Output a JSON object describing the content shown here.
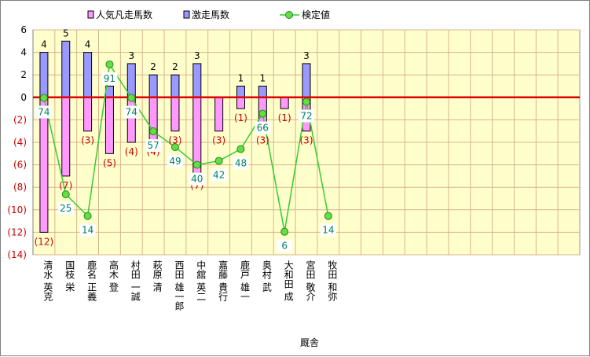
{
  "chart_data": {
    "type": "bar+line",
    "xlabel": "厩舎",
    "ylim": [
      -14,
      6
    ],
    "y_ticks": [
      6,
      4,
      2,
      0,
      -2,
      -4,
      -6,
      -8,
      -10,
      -12,
      -14
    ],
    "y_tick_labels": [
      "6",
      "4",
      "2",
      "0",
      "(2)",
      "(4)",
      "(6)",
      "(8)",
      "(10)",
      "(12)",
      "(14)"
    ],
    "grid": true,
    "legend_position": "top",
    "categories": [
      "清水 英克",
      "国枝 栄",
      "鹿名 正義",
      "高木 登",
      "村田 一誠",
      "萩原 清",
      "西田 雄一郎",
      "中舘 英二",
      "嘉藤 貴行",
      "鹿戸 雄一",
      "奥村 武",
      "大和田 成",
      "宮田 敬介",
      "牧田 和弥"
    ],
    "series": [
      {
        "name": "人気凡走馬数",
        "kind": "bar",
        "color": "#ff99ff",
        "values": [
          -12,
          -7,
          -3,
          -5,
          -4,
          -4,
          -3,
          -7,
          -3,
          -1,
          -3,
          -1,
          -3,
          null
        ]
      },
      {
        "name": "激走馬数",
        "kind": "bar",
        "color": "#9999ff",
        "values": [
          4,
          5,
          4,
          1,
          3,
          2,
          2,
          3,
          0,
          1,
          1,
          0,
          3,
          null
        ]
      },
      {
        "name": "検定値",
        "kind": "line",
        "color": "#33cc33",
        "values": [
          74,
          25,
          14,
          91,
          74,
          57,
          49,
          40,
          42,
          48,
          66,
          6,
          72,
          14
        ]
      }
    ],
    "bar_labels": {
      "positive": [
        "4",
        "5",
        "4",
        "1",
        "3",
        "2",
        "2",
        "3",
        "",
        "1",
        "1",
        "",
        "3",
        ""
      ],
      "negative": [
        "(12)",
        "(7)",
        "(3)",
        "(5)",
        "(4)",
        "(4)",
        "(3)",
        "(7)",
        "(3)",
        "(1)",
        "(3)",
        "(1)",
        "(3)",
        ""
      ]
    },
    "colors": {
      "plot_bg": "#ffffcc",
      "grid": "#d9b38c",
      "zero_line": "#dd0000",
      "negative_label": "#cc0000",
      "line_label": "#008060"
    }
  }
}
